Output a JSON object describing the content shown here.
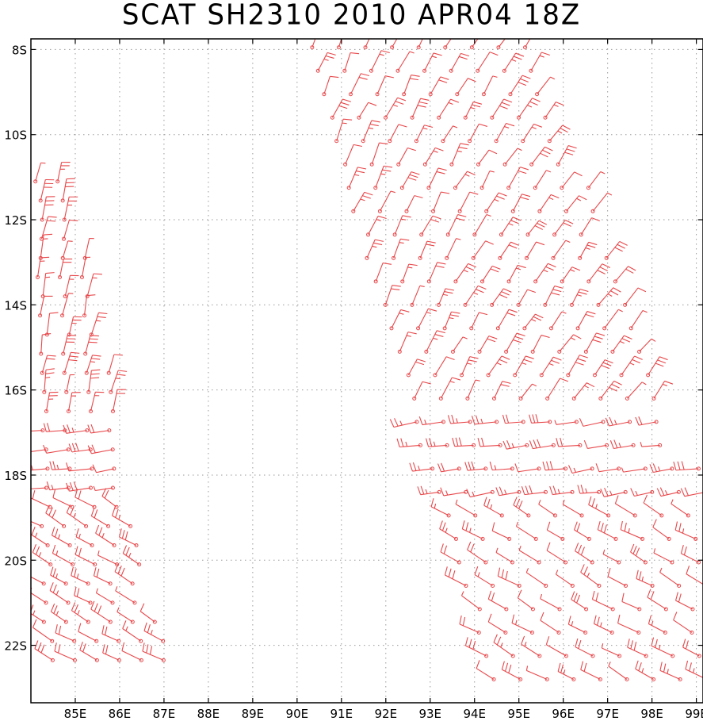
{
  "title": "SCAT SH2310 2010 APR04 18Z",
  "map": {
    "lon_range": [
      84.0,
      99.15
    ],
    "lat_range": [
      -23.35,
      -7.75
    ],
    "lon_ticks": [
      85,
      86,
      87,
      88,
      89,
      90,
      91,
      92,
      93,
      94,
      95,
      96,
      97,
      98,
      99
    ],
    "lon_tick_labels": [
      "85E",
      "86E",
      "87E",
      "88E",
      "89E",
      "90E",
      "91E",
      "92E",
      "93E",
      "94E",
      "95E",
      "96E",
      "97E",
      "98E",
      "99E"
    ],
    "lat_ticks": [
      -8,
      -10,
      -12,
      -14,
      -16,
      -18,
      -20,
      -22
    ],
    "lat_tick_labels": [
      "8S",
      "10S",
      "12S",
      "14S",
      "16S",
      "18S",
      "20S",
      "22S"
    ],
    "grid": "dotted",
    "barb_color": "#e8474a",
    "content": "scatterometer wind barbs along two swaths"
  }
}
